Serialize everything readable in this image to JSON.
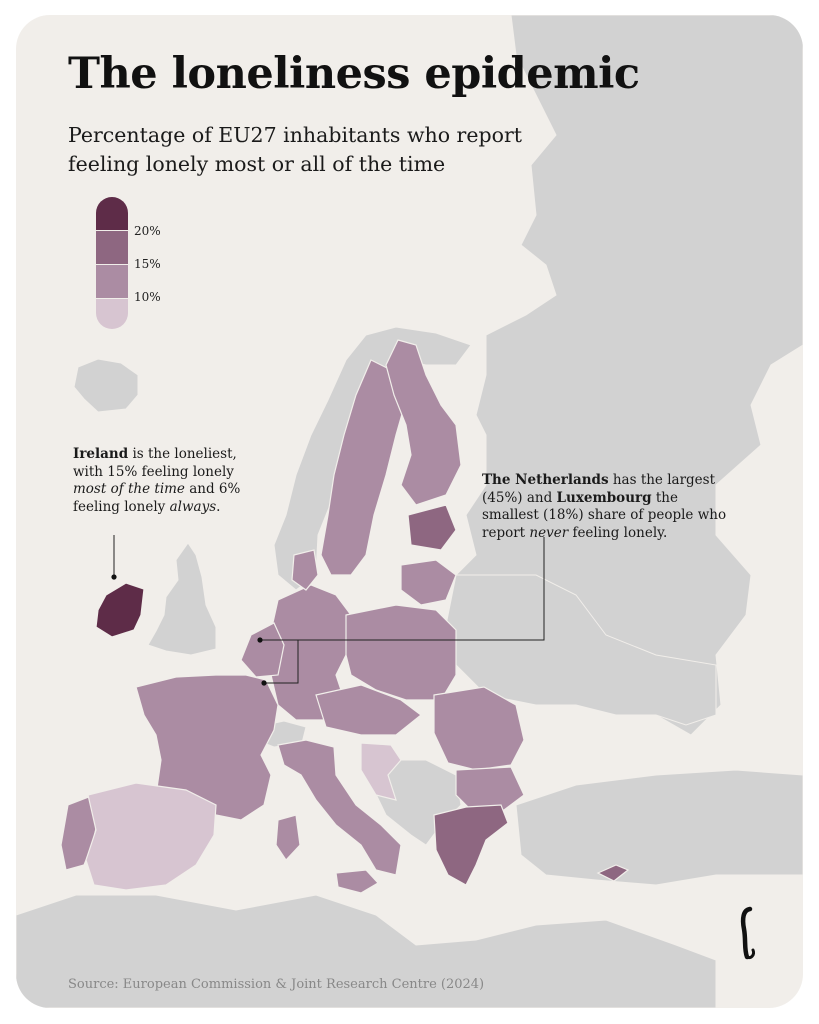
{
  "title": "The loneliness epidemic",
  "subtitle": "Percentage of EU27 inhabitants who report feeling lonely most or all of the time",
  "legend": {
    "labels": [
      "20%",
      "15%",
      "10%"
    ],
    "colors": [
      "#5e2c48",
      "#8e6781",
      "#ab8ca3",
      "#d7c5d1"
    ]
  },
  "annotations": {
    "ireland": {
      "bold": "Ireland",
      "t1": " is the loneliest, with 15% feeling lonely ",
      "i1": "most of the time",
      "t2": " and 6% feeling lonely ",
      "i2": "always",
      "t3": "."
    },
    "netherlands": {
      "bold1": "The Netherlands",
      "t1": " has the largest (45%) and ",
      "bold2": "Luxembourg",
      "t2": " the smallest (18%) share of people who report ",
      "i1": "never",
      "t3": " feeling lonely."
    }
  },
  "source": "Source: European Commission & Joint Research Centre (2024)",
  "colors": {
    "background": "#f1eeea",
    "non_eu_land": "#d2d2d2",
    "tier_highest": "#5e2c48",
    "tier_high": "#8e6781",
    "tier_mid": "#ab8ca3",
    "tier_low": "#d7c5d1"
  }
}
